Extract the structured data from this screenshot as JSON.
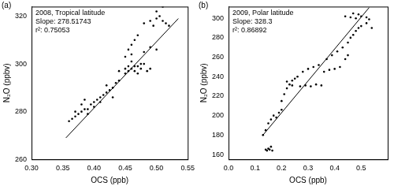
{
  "chart_data": [
    {
      "type": "scatter",
      "panel_label": "(a)",
      "annotations": [
        "2008, Tropical latitude",
        "Slope: 278.51743",
        "r²: 0.75053"
      ],
      "x_label": "OCS (ppb)",
      "y_label": "N₂O (ppbv)",
      "xlim": [
        0.3,
        0.55
      ],
      "xticks": [
        {
          "value": 0.3,
          "label": "0.30"
        },
        0.35,
        {
          "value": 0.4,
          "label": "0.40"
        },
        0.45,
        {
          "value": 0.5,
          "label": "0.50"
        },
        0.55
      ],
      "ylim": [
        260,
        324
      ],
      "yticks": [
        260,
        280,
        300,
        320
      ],
      "grid": false,
      "series": [
        {
          "type": "scatter",
          "marker": "circle",
          "color": "#000000",
          "x": [
            0.36,
            0.365,
            0.37,
            0.375,
            0.38,
            0.385,
            0.39,
            0.395,
            0.4,
            0.405,
            0.41,
            0.415,
            0.42,
            0.38,
            0.39,
            0.4,
            0.41,
            0.37,
            0.385,
            0.42,
            0.425,
            0.43,
            0.435,
            0.44,
            0.43,
            0.44,
            0.45,
            0.455,
            0.46,
            0.465,
            0.47,
            0.475,
            0.48,
            0.485,
            0.49,
            0.46,
            0.47,
            0.45,
            0.455,
            0.465,
            0.475,
            0.45,
            0.455,
            0.46,
            0.465,
            0.47,
            0.46,
            0.48,
            0.49,
            0.5,
            0.48,
            0.49,
            0.5,
            0.505,
            0.51,
            0.515,
            0.52,
            0.5,
            0.51,
            0.495
          ],
          "values": [
            276,
            277,
            278,
            279,
            280,
            281,
            281,
            283,
            284,
            285,
            286,
            287,
            288,
            283,
            279,
            282,
            284,
            280,
            285,
            291,
            289,
            290,
            292,
            293,
            286,
            297,
            298,
            299,
            298,
            297,
            299,
            298,
            300,
            297,
            298,
            301,
            296,
            296,
            297,
            299,
            300,
            303,
            306,
            308,
            310,
            312,
            304,
            305,
            307,
            306,
            317,
            318,
            319,
            320,
            318,
            317,
            316,
            322,
            324,
            316
          ]
        },
        {
          "type": "line",
          "line_style": "solid",
          "color": "#000000",
          "x": [
            0.355,
            0.535
          ],
          "values": [
            269,
            319
          ]
        }
      ]
    },
    {
      "type": "scatter",
      "panel_label": "(b)",
      "annotations": [
        "2009, Polar latitude",
        "Slope: 328.3",
        "r²: 0.86892"
      ],
      "x_label": "OCS (ppb)",
      "y_label": "N₂O (ppbv)",
      "xlim": [
        0,
        0.6
      ],
      "xticks": [
        {
          "value": 0,
          "label": "0.0"
        },
        0.1,
        0.2,
        0.3,
        0.4,
        0.5
      ],
      "ylim": [
        155,
        312
      ],
      "yticks": [
        160,
        180,
        200,
        220,
        240,
        260,
        280,
        300
      ],
      "grid": false,
      "series": [
        {
          "type": "scatter",
          "marker": "circle",
          "color": "#000000",
          "x": [
            0.14,
            0.145,
            0.15,
            0.155,
            0.16,
            0.165,
            0.13,
            0.14,
            0.15,
            0.16,
            0.17,
            0.18,
            0.19,
            0.2,
            0.2,
            0.21,
            0.22,
            0.23,
            0.24,
            0.25,
            0.26,
            0.22,
            0.24,
            0.27,
            0.29,
            0.31,
            0.33,
            0.35,
            0.28,
            0.3,
            0.32,
            0.34,
            0.36,
            0.38,
            0.4,
            0.42,
            0.37,
            0.39,
            0.41,
            0.43,
            0.44,
            0.45,
            0.45,
            0.46,
            0.47,
            0.48,
            0.49,
            0.5,
            0.44,
            0.46,
            0.48,
            0.5,
            0.52,
            0.53,
            0.47,
            0.49,
            0.52,
            0.54
          ],
          "values": [
            165,
            164,
            166,
            165,
            168,
            164,
            180,
            185,
            192,
            196,
            200,
            198,
            203,
            206,
            215,
            222,
            228,
            232,
            236,
            238,
            240,
            235,
            231,
            230,
            231,
            230,
            232,
            231,
            245,
            248,
            250,
            252,
            245,
            247,
            248,
            250,
            258,
            262,
            266,
            270,
            258,
            262,
            275,
            280,
            283,
            287,
            290,
            292,
            302,
            301,
            300,
            302,
            301,
            299,
            305,
            304,
            295,
            290
          ]
        },
        {
          "type": "line",
          "line_style": "solid",
          "color": "#000000",
          "x": [
            0.13,
            0.53
          ],
          "values": [
            180,
            311
          ]
        }
      ]
    }
  ]
}
